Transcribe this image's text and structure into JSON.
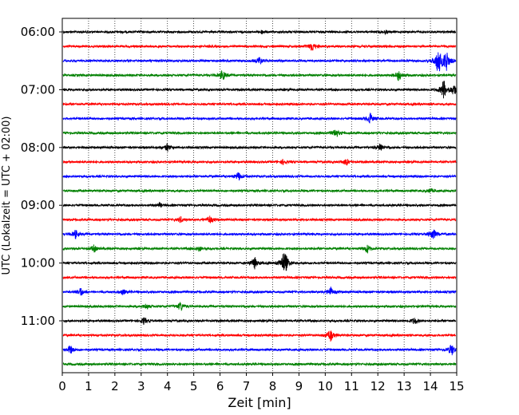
{
  "chart_data": {
    "type": "line",
    "title": "",
    "xlabel": "Zeit  [min]",
    "ylabel": "UTC (Lokalzeit = UTC + 02:00)",
    "xlim": [
      0,
      15
    ],
    "x_ticks": [
      0,
      1,
      2,
      3,
      4,
      5,
      6,
      7,
      8,
      9,
      10,
      11,
      12,
      13,
      14,
      15
    ],
    "y_tick_labels": [
      "06:00",
      "07:00",
      "08:00",
      "09:00",
      "10:00",
      "11:00"
    ],
    "grid": "vertical dotted lines at each minute",
    "trace_color_cycle": [
      "#000000",
      "#ff0000",
      "#0000ff",
      "#008000"
    ],
    "series": [
      {
        "start": "06:00",
        "events": [
          [
            7.6,
            0.25
          ],
          [
            12.3,
            0.2
          ]
        ]
      },
      {
        "start": "06:15",
        "events": [
          [
            9.5,
            0.7
          ]
        ]
      },
      {
        "start": "06:30",
        "events": [
          [
            7.5,
            0.6
          ],
          [
            14.3,
            2.2
          ],
          [
            14.6,
            1.6
          ]
        ]
      },
      {
        "start": "06:45",
        "events": [
          [
            6.1,
            0.8
          ],
          [
            12.8,
            0.8
          ]
        ]
      },
      {
        "start": "07:00",
        "events": [
          [
            14.5,
            1.4
          ],
          [
            14.9,
            0.8
          ]
        ]
      },
      {
        "start": "07:15",
        "events": []
      },
      {
        "start": "07:30",
        "events": [
          [
            11.7,
            0.8
          ]
        ]
      },
      {
        "start": "07:45",
        "events": [
          [
            10.4,
            0.7
          ]
        ]
      },
      {
        "start": "08:00",
        "events": [
          [
            4.0,
            0.5
          ],
          [
            12.1,
            0.6
          ]
        ]
      },
      {
        "start": "08:15",
        "events": [
          [
            8.4,
            0.35
          ],
          [
            10.8,
            0.5
          ]
        ]
      },
      {
        "start": "08:30",
        "events": [
          [
            6.7,
            0.6
          ]
        ]
      },
      {
        "start": "08:45",
        "events": [
          [
            14.0,
            0.3
          ]
        ]
      },
      {
        "start": "09:00",
        "events": [
          [
            3.7,
            0.3
          ]
        ]
      },
      {
        "start": "09:15",
        "events": [
          [
            4.5,
            0.4
          ],
          [
            5.6,
            0.6
          ]
        ]
      },
      {
        "start": "09:30",
        "events": [
          [
            0.5,
            0.6
          ],
          [
            14.1,
            0.9
          ]
        ]
      },
      {
        "start": "09:45",
        "events": [
          [
            1.2,
            0.5
          ],
          [
            5.2,
            0.35
          ],
          [
            11.6,
            0.6
          ]
        ]
      },
      {
        "start": "10:00",
        "events": [
          [
            7.3,
            0.9
          ],
          [
            8.4,
            1.2
          ],
          [
            8.5,
            0.9
          ]
        ]
      },
      {
        "start": "10:15",
        "events": []
      },
      {
        "start": "10:30",
        "events": [
          [
            0.7,
            0.6
          ],
          [
            2.3,
            0.4
          ],
          [
            10.2,
            0.7
          ]
        ]
      },
      {
        "start": "10:45",
        "events": [
          [
            3.2,
            0.4
          ],
          [
            4.5,
            0.7
          ]
        ]
      },
      {
        "start": "11:00",
        "events": [
          [
            3.1,
            0.5
          ],
          [
            13.4,
            0.5
          ]
        ]
      },
      {
        "start": "11:15",
        "events": [
          [
            10.2,
            0.9
          ]
        ]
      },
      {
        "start": "11:30",
        "events": [
          [
            0.3,
            0.6
          ],
          [
            14.8,
            0.9
          ]
        ]
      },
      {
        "start": "11:45",
        "events": []
      }
    ]
  }
}
